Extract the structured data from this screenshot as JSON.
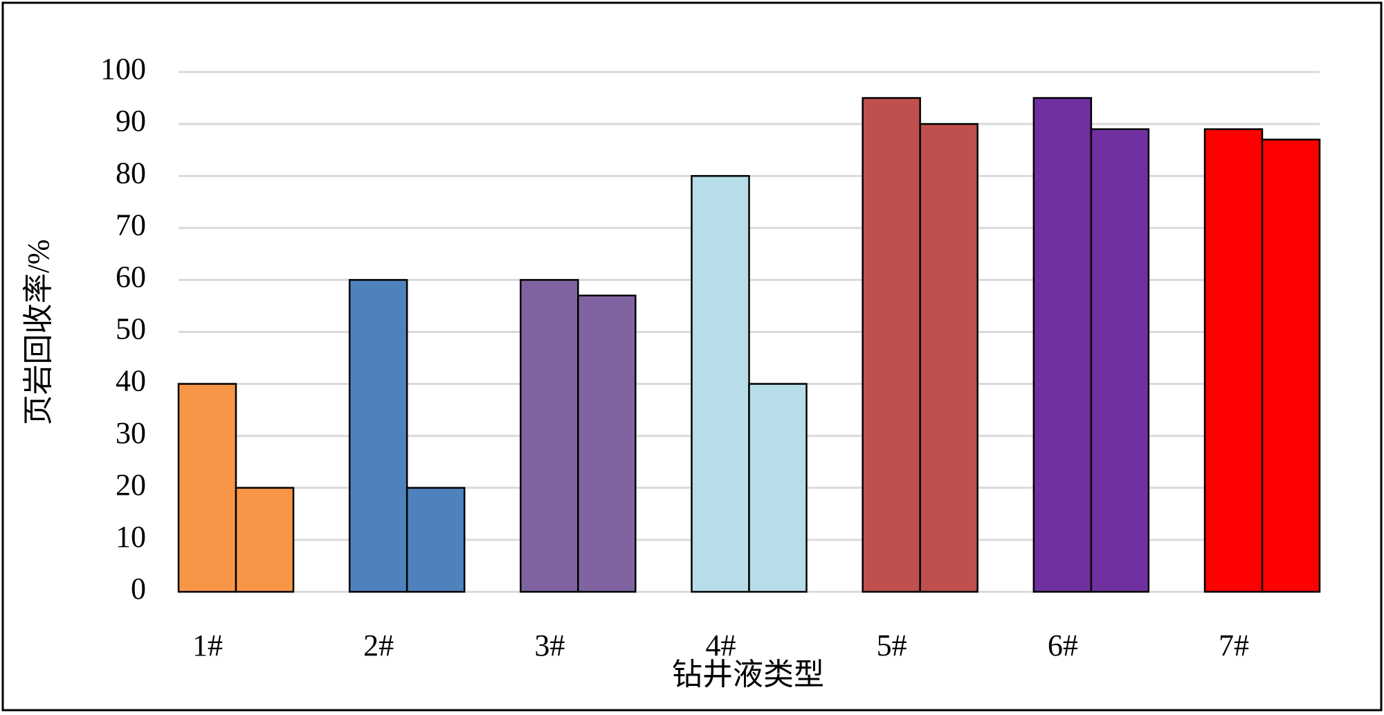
{
  "chart_data": {
    "type": "bar",
    "x_label": "钻井液类型",
    "y_label": "页岩回收率/%",
    "categories": [
      "1#",
      "2#",
      "3#",
      "4#",
      "5#",
      "6#",
      "7#"
    ],
    "colors": [
      "#f79646",
      "#4f81bd",
      "#8064a2",
      "#b7dde8",
      "#c0504d",
      "#7030a0",
      "#ff0000"
    ],
    "series": [
      {
        "values": [
          40,
          60,
          60,
          80,
          95,
          95,
          89
        ]
      },
      {
        "values": [
          20,
          20,
          57,
          40,
          90,
          89,
          87
        ]
      }
    ],
    "ylim": [
      0,
      100
    ],
    "yticks": [
      0,
      10,
      20,
      30,
      40,
      50,
      60,
      70,
      80,
      90,
      100
    ],
    "grid": true
  }
}
